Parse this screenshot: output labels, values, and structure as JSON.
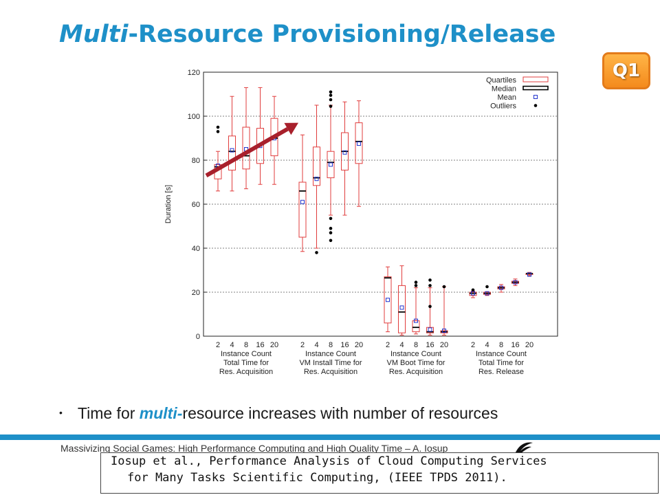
{
  "slide": {
    "title_em": "Multi",
    "title_rest": "-Resource Provisioning/Release",
    "badge": "Q1",
    "bullet_pre": "Time for ",
    "bullet_em": "multi-",
    "bullet_post": "resource increases with number of resources",
    "footer": "Massivizing Social Games: High Performance Computing and High Quality Time – A. Iosup",
    "citation_line1": "Iosup et al., Performance Analysis of Cloud Computing Services",
    "citation_line2": "for Many Tasks Scientific Computing, (IEEE TPDS 2011).",
    "accent_color": "#1e90c8",
    "box_color": "#e03c3c",
    "arrow_color": "#a8202c"
  },
  "chart_data": {
    "type": "boxplot",
    "ylabel": "Duration [s]",
    "ylim": [
      0,
      120
    ],
    "yticks": [
      0,
      20,
      40,
      60,
      80,
      100,
      120
    ],
    "grid": true,
    "legend": {
      "position": "top-right",
      "entries": [
        "Quartiles",
        "Median",
        "Mean",
        "Outliers"
      ]
    },
    "groups": [
      {
        "label_lines": [
          "Instance Count",
          "Total Time for",
          "Res. Acquisition"
        ],
        "boxes": [
          {
            "x": "2",
            "whisker_low": 66,
            "q1": 71.5,
            "median": 77,
            "q3": 78,
            "whisker_high": 84,
            "mean": 77.5,
            "outliers": [
              93,
              95
            ]
          },
          {
            "x": "4",
            "whisker_low": 66,
            "q1": 75.5,
            "median": 84,
            "q3": 91,
            "whisker_high": 109,
            "mean": 84.5,
            "outliers": []
          },
          {
            "x": "8",
            "whisker_low": 67,
            "q1": 76,
            "median": 82,
            "q3": 95,
            "whisker_high": 113,
            "mean": 85,
            "outliers": []
          },
          {
            "x": "16",
            "whisker_low": 69,
            "q1": 78.5,
            "median": 87,
            "q3": 94.5,
            "whisker_high": 113,
            "mean": 86.5,
            "outliers": []
          },
          {
            "x": "20",
            "whisker_low": 69,
            "q1": 82,
            "median": 90,
            "q3": 99,
            "whisker_high": 109,
            "mean": 90,
            "outliers": []
          }
        ]
      },
      {
        "label_lines": [
          "Instance Count",
          "VM Install Time for",
          "Res. Acquisition"
        ],
        "boxes": [
          {
            "x": "2",
            "whisker_low": 38.5,
            "q1": 45,
            "median": 66,
            "q3": 70,
            "whisker_high": 91.5,
            "mean": 61,
            "outliers": []
          },
          {
            "x": "4",
            "whisker_low": 40,
            "q1": 68.5,
            "median": 72,
            "q3": 86,
            "whisker_high": 105,
            "mean": 71.5,
            "outliers": [
              38
            ]
          },
          {
            "x": "8",
            "whisker_low": 55,
            "q1": 72,
            "median": 79,
            "q3": 84,
            "whisker_high": 105,
            "mean": 78,
            "outliers": [
              43.5,
              47,
              49,
              53.5,
              104.5,
              107.5,
              109.5,
              111
            ]
          },
          {
            "x": "16",
            "whisker_low": 55,
            "q1": 75.5,
            "median": 84,
            "q3": 92.5,
            "whisker_high": 106.5,
            "mean": 83.5,
            "outliers": []
          },
          {
            "x": "20",
            "whisker_low": 59,
            "q1": 78.5,
            "median": 88.5,
            "q3": 97,
            "whisker_high": 107,
            "mean": 87.5,
            "outliers": []
          }
        ]
      },
      {
        "label_lines": [
          "Instance Count",
          "VM Boot Time for",
          "Res. Acquisition"
        ],
        "boxes": [
          {
            "x": "2",
            "whisker_low": 2,
            "q1": 6,
            "median": 26.5,
            "q3": 27,
            "whisker_high": 31.5,
            "mean": 16.5,
            "outliers": []
          },
          {
            "x": "4",
            "whisker_low": 0.5,
            "q1": 1.5,
            "median": 11,
            "q3": 23,
            "whisker_high": 32,
            "mean": 13,
            "outliers": []
          },
          {
            "x": "8",
            "whisker_low": 1,
            "q1": 2,
            "median": 4,
            "q3": 7,
            "whisker_high": 22,
            "mean": 7,
            "outliers": [
              23,
              24.5
            ]
          },
          {
            "x": "16",
            "whisker_low": 0.5,
            "q1": 1.5,
            "median": 2,
            "q3": 4,
            "whisker_high": 22,
            "mean": 3,
            "outliers": [
              13.5,
              23,
              25.5
            ]
          },
          {
            "x": "20",
            "whisker_low": 0.5,
            "q1": 1.5,
            "median": 2,
            "q3": 2.5,
            "whisker_high": 22.5,
            "mean": 2.5,
            "outliers": [
              22.5
            ]
          }
        ]
      },
      {
        "label_lines": [
          "Instance Count",
          "Total Time for",
          "Res. Release"
        ],
        "boxes": [
          {
            "x": "2",
            "whisker_low": 17.5,
            "q1": 18.5,
            "median": 19.5,
            "q3": 20,
            "whisker_high": 20.5,
            "mean": 19.5,
            "outliers": [
              21
            ]
          },
          {
            "x": "4",
            "whisker_low": 18.5,
            "q1": 19,
            "median": 19.5,
            "q3": 20,
            "whisker_high": 20,
            "mean": 19.5,
            "outliers": [
              22.5
            ]
          },
          {
            "x": "8",
            "whisker_low": 20,
            "q1": 21.5,
            "median": 22,
            "q3": 22.5,
            "whisker_high": 23.5,
            "mean": 22,
            "outliers": []
          },
          {
            "x": "16",
            "whisker_low": 23,
            "q1": 24,
            "median": 24.5,
            "q3": 25,
            "whisker_high": 26,
            "mean": 24.5,
            "outliers": []
          },
          {
            "x": "20",
            "whisker_low": 27.5,
            "q1": 28,
            "median": 28.5,
            "q3": 28.5,
            "whisker_high": 29,
            "mean": 28,
            "outliers": []
          }
        ]
      }
    ],
    "annotation": {
      "type": "arrow",
      "from": {
        "group": 0,
        "box": "2",
        "y": 73
      },
      "to": {
        "group": 1,
        "box": "2",
        "y": 97
      }
    }
  }
}
